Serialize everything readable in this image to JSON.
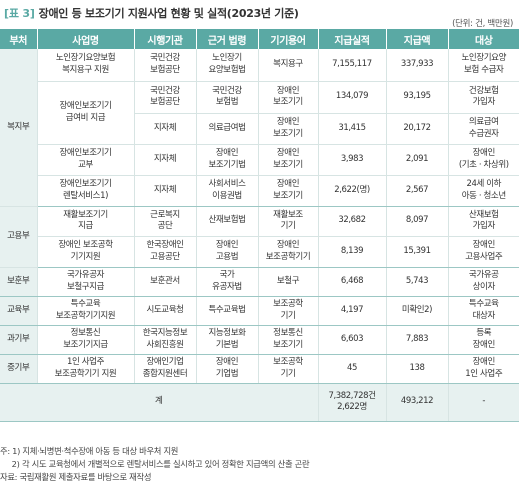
{
  "title": {
    "number": "[표 3]",
    "text": "장애인 등 보조기기 지원사업 현황 및 실적(2023년 기준)"
  },
  "unit": "(단위: 건, 백만원)",
  "header": [
    "부처",
    "사업명",
    "시행기관",
    "근거 법령",
    "기기용어",
    "지급실적",
    "지급액",
    "대상"
  ],
  "rows": [
    {
      "cat": "복지부",
      "name": "노인장기요양보험\n복지용구 지원",
      "agency": "국민건강\n보험공단",
      "law": "노인장기\n요양보험법",
      "term": "복지용구",
      "count": "7,155,117",
      "amount": "337,933",
      "target": "노인장기요양\n보험 수급자"
    },
    {
      "name": "장애인보조기기\n급여비 지급",
      "agency": "국민건강\n보험공단",
      "law": "국민건강\n보험법",
      "term": "장애인\n보조기기",
      "count": "134,079",
      "amount": "93,195",
      "target": "건강보험\n가입자"
    },
    {
      "agency": "지자체",
      "law": "의료급여법",
      "term": "장애인\n보조기기",
      "count": "31,415",
      "amount": "20,172",
      "target": "의료급여\n수급권자"
    },
    {
      "name": "장애인보조기기\n교부",
      "agency": "지자체",
      "law": "장애인\n보조기기법",
      "term": "장애인\n보조기기",
      "count": "3,983",
      "amount": "2,091",
      "target": "장애인\n(기초 · 차상위)"
    },
    {
      "name": "장애인보조기기\n렌탈서비스1)",
      "agency": "지자체",
      "law": "사회서비스\n이용권법",
      "term": "장애인\n보조기기",
      "count": "2,622(명)",
      "amount": "2,567",
      "target": "24세 이하\n아동 · 청소년"
    },
    {
      "cat": "고용부",
      "name": "재활보조기기\n지급",
      "agency": "근로복지\n공단",
      "law": "산재보험법",
      "term": "재활보조\n기기",
      "count": "32,682",
      "amount": "8,097",
      "target": "산재보험\n가입자"
    },
    {
      "name": "장애인 보조공학\n기기지원",
      "agency": "한국장애인\n고용공단",
      "law": "장애인\n고용법",
      "term": "장애인\n보조공학기기",
      "count": "8,139",
      "amount": "15,391",
      "target": "장애인\n고용사업주"
    },
    {
      "cat": "보훈부",
      "name": "국가유공자\n보철구지급",
      "agency": "보훈관서",
      "law": "국가\n유공자법",
      "term": "보철구",
      "count": "6,468",
      "amount": "5,743",
      "target": "국가유공\n상이자"
    },
    {
      "cat": "교육부",
      "name": "특수교육\n보조공학기기지원",
      "agency": "시도교육청",
      "law": "특수교육법",
      "term": "보조공학\n기기",
      "count": "4,197",
      "amount": "미확인2)",
      "target": "특수교육\n대상자"
    },
    {
      "cat": "과기부",
      "name": "정보통신\n보조기기지급",
      "agency": "한국지능정보\n사회진흥원",
      "law": "지능정보화\n기본법",
      "term": "정보통신\n보조기기",
      "count": "6,603",
      "amount": "7,883",
      "target": "등록\n장애인"
    },
    {
      "cat": "중기부",
      "name": "1인 사업주\n보조공학기기 지원",
      "agency": "장애인기업\n종합지원센터",
      "law": "장애인\n기업법",
      "term": "보조공학\n기기",
      "count": "45",
      "amount": "138",
      "target": "장애인\n1인 사업주"
    }
  ],
  "total": {
    "label": "계",
    "count": "7,382,728건\n2,622명",
    "amount": "493,212",
    "target": "-"
  },
  "notes": [
    "주: 1) 지체·뇌병변·척수장애 아동 등 대상 바우처 지원",
    "     2) 각 시도 교육청에서 개별적으로 렌탈서비스를 실시하고 있어 정확한 지급액의 산출 곤란",
    "자료: 국립재활원 제출자료를 바탕으로 재작성"
  ]
}
